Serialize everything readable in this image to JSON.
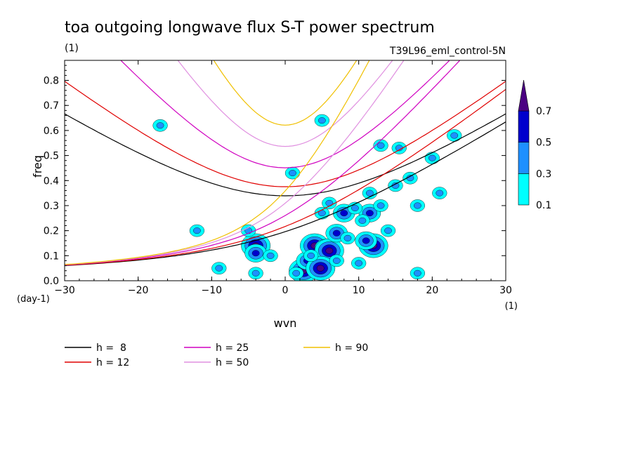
{
  "chart_data": {
    "type": "heatmap",
    "title": "toa outgoing longwave flux S-T power spectrum",
    "subtitle_left": "(1)",
    "subtitle_right": "T39L96_eml_control-5N",
    "xlabel": "wvn",
    "ylabel": "freq",
    "x_unit_label": "(1)",
    "y_unit_label": "(day-1)",
    "xlim": [
      -30,
      30
    ],
    "ylim": [
      0,
      0.88
    ],
    "x_ticks": [
      -30,
      -20,
      -10,
      0,
      10,
      20,
      30
    ],
    "y_ticks": [
      0,
      0.1,
      0.2,
      0.3,
      0.4,
      0.5,
      0.6,
      0.7,
      0.8
    ],
    "x_tick_labels": [
      "−30",
      "−20",
      "−10",
      "0",
      "10",
      "20",
      "30"
    ],
    "y_tick_labels": [
      "0.0",
      "0.1",
      "0.2",
      "0.3",
      "0.4",
      "0.5",
      "0.6",
      "0.7",
      "0.8"
    ],
    "colorbar": {
      "levels": [
        "0.1",
        "0.3",
        "0.5",
        "0.7"
      ],
      "colors": [
        "#00ffff",
        "#1e90ff",
        "#0000cd",
        "#4b0082"
      ]
    },
    "contour_blobs": [
      {
        "x": 2.5,
        "y": 0.04,
        "level": 3
      },
      {
        "x": 3.0,
        "y": 0.08,
        "level": 2
      },
      {
        "x": 4.0,
        "y": 0.14,
        "level": 3
      },
      {
        "x": 5.5,
        "y": 0.13,
        "level": 2
      },
      {
        "x": 6.0,
        "y": 0.12,
        "level": 3
      },
      {
        "x": 4.8,
        "y": 0.05,
        "level": 3
      },
      {
        "x": -4.0,
        "y": 0.14,
        "level": 3
      },
      {
        "x": -4.0,
        "y": 0.11,
        "level": 2
      },
      {
        "x": 8.0,
        "y": 0.27,
        "level": 2
      },
      {
        "x": 11.5,
        "y": 0.27,
        "level": 2
      },
      {
        "x": 12.0,
        "y": 0.14,
        "level": 3
      },
      {
        "x": 11.0,
        "y": 0.16,
        "level": 2
      },
      {
        "x": 7.0,
        "y": 0.19,
        "level": 2
      },
      {
        "x": 8.5,
        "y": 0.17,
        "level": 1
      },
      {
        "x": 10.5,
        "y": 0.24,
        "level": 1
      },
      {
        "x": 9.5,
        "y": 0.29,
        "level": 1
      },
      {
        "x": 13.0,
        "y": 0.3,
        "level": 1
      },
      {
        "x": 6.0,
        "y": 0.31,
        "level": 1
      },
      {
        "x": 3.5,
        "y": 0.1,
        "level": 1
      },
      {
        "x": 1.5,
        "y": 0.03,
        "level": 1
      },
      {
        "x": -4.0,
        "y": 0.03,
        "level": 1
      },
      {
        "x": -2.0,
        "y": 0.1,
        "level": 1
      },
      {
        "x": -9.0,
        "y": 0.05,
        "level": 1
      },
      {
        "x": 7.0,
        "y": 0.08,
        "level": 1
      },
      {
        "x": 10.0,
        "y": 0.07,
        "level": 1
      },
      {
        "x": 11.5,
        "y": 0.35,
        "level": 1
      },
      {
        "x": 15.0,
        "y": 0.38,
        "level": 1
      },
      {
        "x": 17.0,
        "y": 0.41,
        "level": 1
      },
      {
        "x": 20.0,
        "y": 0.49,
        "level": 1
      },
      {
        "x": 23.0,
        "y": 0.58,
        "level": 1
      },
      {
        "x": 5.0,
        "y": 0.64,
        "level": 1
      },
      {
        "x": 5.0,
        "y": 0.27,
        "level": 1
      },
      {
        "x": -17.0,
        "y": 0.62,
        "level": 1
      },
      {
        "x": -12.0,
        "y": 0.2,
        "level": 1
      },
      {
        "x": -5.0,
        "y": 0.2,
        "level": 1
      },
      {
        "x": 14.0,
        "y": 0.2,
        "level": 1
      },
      {
        "x": 15.5,
        "y": 0.53,
        "level": 1
      },
      {
        "x": 18.0,
        "y": 0.03,
        "level": 1
      },
      {
        "x": 13.0,
        "y": 0.54,
        "level": 1
      },
      {
        "x": 1.0,
        "y": 0.43,
        "level": 1
      },
      {
        "x": 18.0,
        "y": 0.3,
        "level": 1
      },
      {
        "x": 21.0,
        "y": 0.35,
        "level": 1
      }
    ],
    "series": [
      {
        "name": "h =  8",
        "color": "#000000",
        "waves": [
          0,
          1
        ]
      },
      {
        "name": "h = 12",
        "color": "#e00000",
        "waves": [
          0,
          1
        ]
      },
      {
        "name": "h = 25",
        "color": "#d000c0",
        "waves": [
          0,
          1
        ]
      },
      {
        "name": "h = 50",
        "color": "#e090e0",
        "waves": [
          0,
          1
        ]
      },
      {
        "name": "h = 90",
        "color": "#f0c000",
        "waves": [
          0,
          1
        ]
      }
    ]
  }
}
